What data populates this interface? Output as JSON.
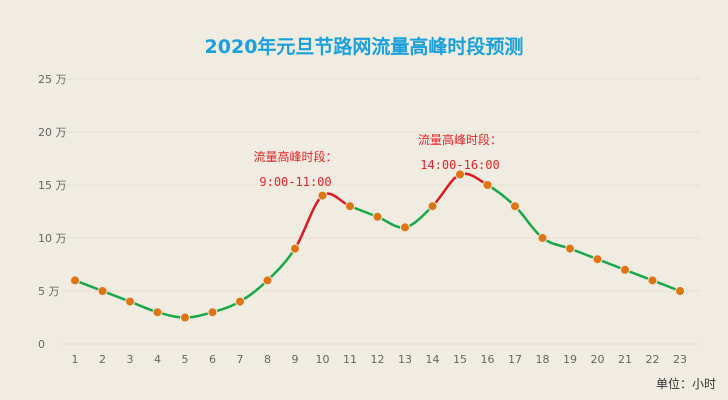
{
  "chart_data": {
    "type": "line",
    "title": "2020年元旦节路网流量高峰时段预测",
    "unit_label": "单位：小时",
    "x": [
      1,
      2,
      3,
      4,
      5,
      6,
      7,
      8,
      9,
      10,
      11,
      12,
      13,
      14,
      15,
      16,
      17,
      18,
      19,
      20,
      21,
      22,
      23
    ],
    "y": [
      6,
      5,
      4,
      3,
      2.5,
      3,
      4,
      6,
      9,
      14,
      13,
      12,
      11,
      13,
      16,
      15,
      13,
      10,
      9,
      8,
      7,
      6,
      5
    ],
    "ylim": [
      0,
      25
    ],
    "yticks": [
      {
        "value": 0,
        "label": "0"
      },
      {
        "value": 5,
        "label": "5 万"
      },
      {
        "value": 10,
        "label": "10 万"
      },
      {
        "value": 15,
        "label": "15 万"
      },
      {
        "value": 20,
        "label": "20 万"
      },
      {
        "value": 25,
        "label": "25 万"
      }
    ],
    "grid": true,
    "colors": {
      "line_normal": "#18a84a",
      "line_peak": "#e3191f",
      "marker": "#e07413",
      "annotation": "#e8232a",
      "title": "#1aa0dc",
      "grid": "#e3dfd3"
    },
    "peak_ranges": [
      [
        9,
        11
      ],
      [
        14,
        16
      ]
    ],
    "annotations": [
      {
        "line1": "流量高峰时段：",
        "line2": "9:00-11:00"
      },
      {
        "line1": "流量高峰时段：",
        "line2": "14:00-16:00"
      }
    ]
  }
}
